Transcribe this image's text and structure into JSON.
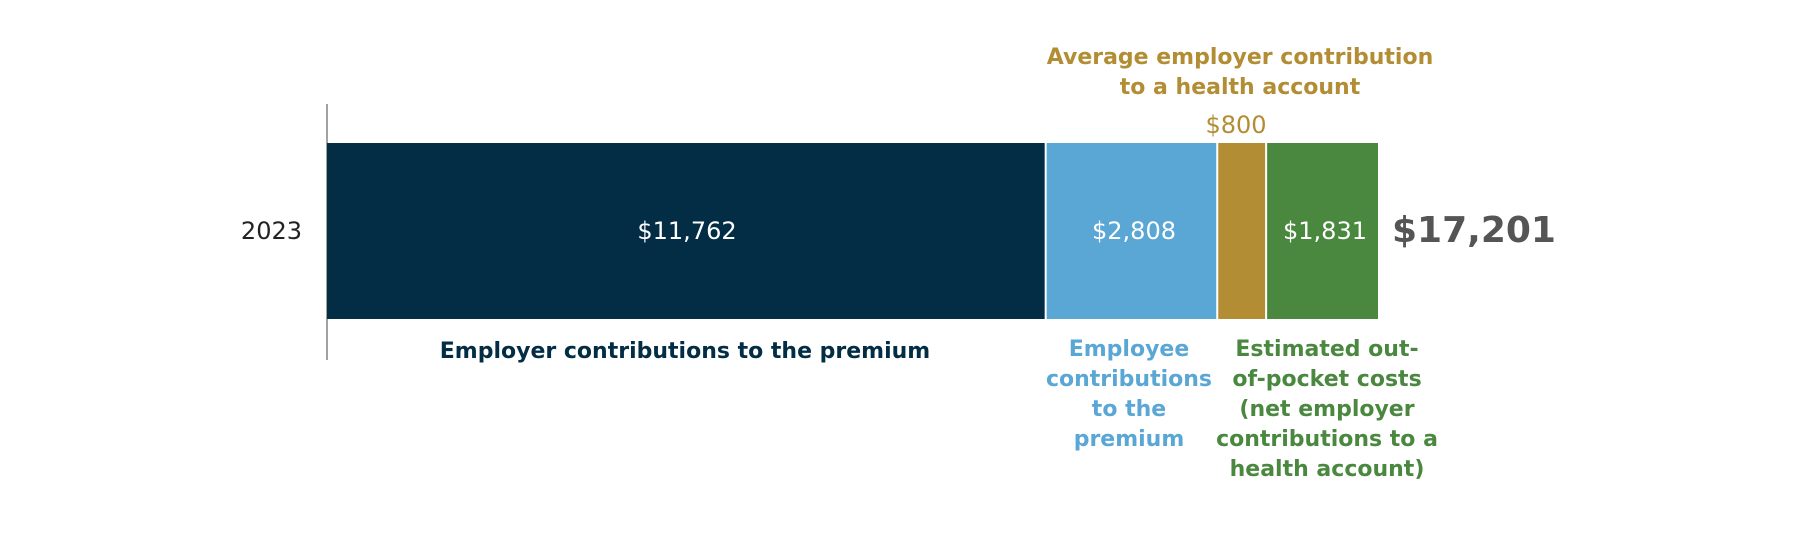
{
  "chart_data": {
    "type": "bar",
    "orientation": "horizontal",
    "stacked": true,
    "categories": [
      "2023"
    ],
    "series": [
      {
        "name": "Employer contributions to the premium",
        "values": [
          11762
        ],
        "color": "#022d45",
        "value_label": "$11,762"
      },
      {
        "name": "Employee contributions to the premium",
        "values": [
          2808
        ],
        "color": "#5aa7d6",
        "value_label": "$2,808"
      },
      {
        "name": "Average employer contribution to a health account",
        "values": [
          800
        ],
        "color": "#b28d33",
        "value_label": "$800"
      },
      {
        "name": "Estimated out-of-pocket costs (net employer contributions to a health account)",
        "values": [
          1831
        ],
        "color": "#4a873f",
        "value_label": "$1,831"
      }
    ],
    "total": 17201,
    "total_label": "$17,201",
    "title": "",
    "xlabel": "",
    "ylabel": ""
  },
  "labels": {
    "employer_premium": "Employer contributions to the premium",
    "employee_premium": "Employee\ncontributions\nto the\npremium",
    "health_account": "Average employer contribution\nto a health account",
    "out_of_pocket": "Estimated out-\nof-pocket costs\n(net employer\ncontributions to a\nhealth account)"
  }
}
